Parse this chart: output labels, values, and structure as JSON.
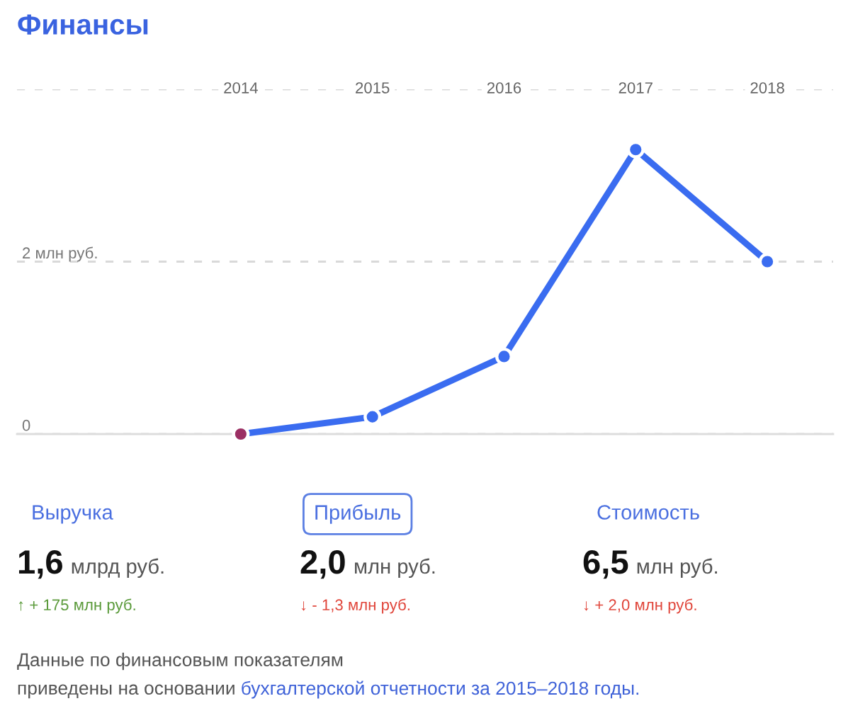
{
  "chart_data": [
    {
      "type": "line",
      "title": "Финансы",
      "x": [
        2014,
        2015,
        2016,
        2017,
        2018
      ],
      "series": [
        {
          "color": "#3a6cf0",
          "colors": [
            "#9b2f63",
            "#3a6cf0",
            "#3a6cf0",
            "#3a6cf0",
            "#3a6cf0"
          ],
          "values": [
            0,
            0.2,
            0.9,
            3.3,
            2.0
          ]
        }
      ],
      "xlim": [
        2012.3,
        2018.5
      ],
      "xticks": [
        2014,
        2015,
        2016,
        2017,
        2018
      ],
      "ylim": [
        0,
        4
      ],
      "yticks": [
        0,
        {
          "value": 2,
          "label": "2 млн руб."
        },
        {
          "value": 4,
          "label": null
        }
      ],
      "grid": "y",
      "marker": "circle",
      "line_style": "solid"
    },
    {
      "type": "other",
      "annotations": [
        "Выручка",
        "Прибыль",
        "Стоимость",
        "1,6",
        "2,0",
        "6,5",
        "млрд руб.",
        "млн руб.",
        "млн руб.",
        "↑ + 175 млн руб.",
        "↓ - 1,3 млн руб.",
        "↓ + 2,0 млн руб.",
        "Данные по финансовым показателям",
        "приведены на основании",
        "бухгалтерской отчетности за 2015–2018 годы."
      ],
      "colors": [
        "#5a9a3a",
        "#e0453a",
        "#e0453a"
      ]
    }
  ]
}
